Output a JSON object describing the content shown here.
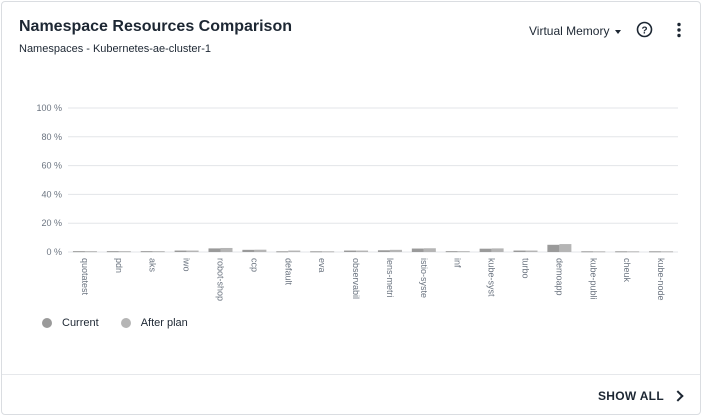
{
  "header": {
    "title": "Namespace Resources Comparison",
    "subtitle": "Namespaces - Kubernetes-ae-cluster-1",
    "metric_selected": "Virtual Memory"
  },
  "icons": {
    "help": "question-circle-icon",
    "menu": "kebab-menu-icon",
    "show_all": "chevron-right-icon"
  },
  "footer": {
    "show_all_label": "SHOW ALL"
  },
  "legend": [
    {
      "label": "Current",
      "color": "#9a9a9a"
    },
    {
      "label": "After plan",
      "color": "#b5b5b5"
    }
  ],
  "chart_data": {
    "type": "bar",
    "ylim": [
      0,
      100
    ],
    "yticks": [
      "0 %",
      "20 %",
      "40 %",
      "60 %",
      "80 %",
      "100 %"
    ],
    "ytick_values": [
      0,
      20,
      40,
      60,
      80,
      100
    ],
    "grid": true,
    "legend_position": "bottom-left",
    "categories": [
      "quotatest",
      "pdn",
      "aks",
      "iwo",
      "robot-shop",
      "ccp",
      "default",
      "eva",
      "observabil",
      "lens-metri",
      "istio-syste",
      "inf",
      "kube-syst",
      "turbo",
      "demoapp",
      "kube-publi",
      "cheuk",
      "kube-node"
    ],
    "series": [
      {
        "name": "Current",
        "color": "#9a9a9a",
        "values": [
          0.6,
          0.6,
          0.6,
          1.0,
          2.5,
          1.5,
          0.5,
          0.5,
          1.0,
          1.2,
          2.4,
          0.6,
          2.3,
          1.0,
          5.0,
          0.5,
          0.5,
          0.5
        ]
      },
      {
        "name": "After plan",
        "color": "#b5b5b5",
        "values": [
          0.6,
          0.6,
          0.6,
          1.0,
          2.8,
          1.6,
          1.0,
          0.5,
          1.0,
          1.5,
          2.6,
          0.6,
          2.5,
          1.0,
          5.5,
          0.5,
          0.5,
          0.5
        ]
      }
    ]
  }
}
